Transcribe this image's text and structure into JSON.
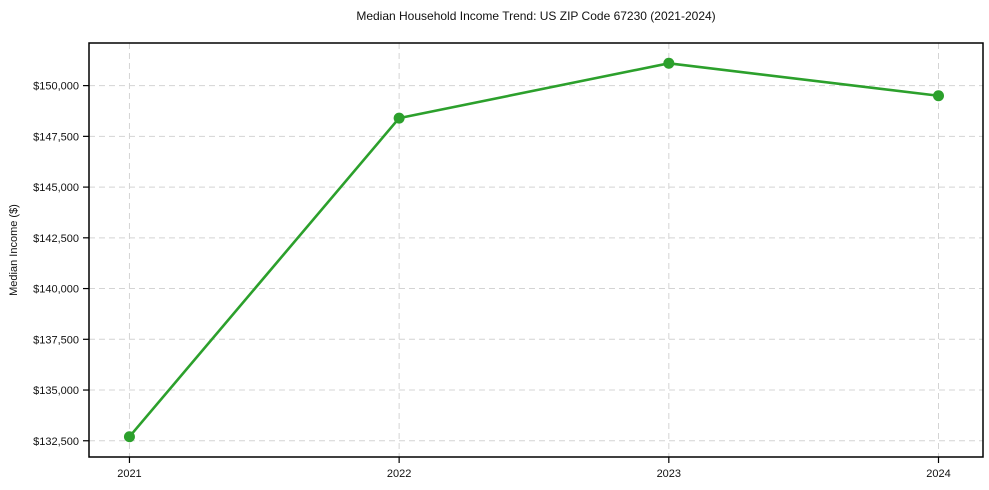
{
  "title": "Median Household Income Trend: US ZIP Code 67230 (2021-2024)",
  "chart_data": {
    "type": "line",
    "title": "Median Household Income Trend: US ZIP Code 67230 (2021-2024)",
    "xlabel": "",
    "ylabel": "Median Income ($)",
    "x": [
      2021,
      2022,
      2023,
      2024
    ],
    "xtick_labels": [
      "2021",
      "2022",
      "2023",
      "2024"
    ],
    "series": [
      {
        "name": "Median Household Income",
        "values": [
          132700,
          148400,
          151100,
          149500
        ]
      }
    ],
    "yticks": [
      132500,
      135000,
      137500,
      140000,
      142500,
      145000,
      147500,
      150000
    ],
    "ytick_labels": [
      "$132,500",
      "$135,000",
      "$137,500",
      "$140,000",
      "$142,500",
      "$145,000",
      "$147,500",
      "$150,000"
    ],
    "xlim": [
      2020.85,
      2024.165
    ],
    "ylim": [
      131700,
      152100
    ],
    "grid": true,
    "grid_style": "dashed",
    "legend": false,
    "colors": {
      "line": "#2ca02c",
      "marker": "#2ca02c",
      "grid": "#d4d4d4",
      "spine": "#000000",
      "text": "#111111",
      "background": "#ffffff"
    }
  }
}
